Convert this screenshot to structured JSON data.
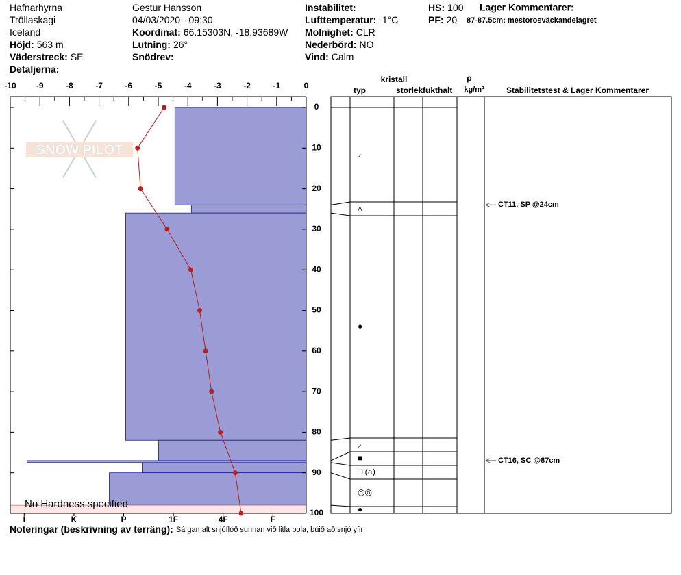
{
  "header": {
    "col1": [
      {
        "value": "Hafnarhyrna"
      },
      {
        "value": "Tröllaskagi"
      },
      {
        "value": "Iceland"
      },
      {
        "label": "Höjd:",
        "value": "563 m"
      },
      {
        "label": "Väderstreck:",
        "value": "SE"
      },
      {
        "label": "Detaljerna:"
      }
    ],
    "col2": [
      {
        "value": "Gestur Hansson"
      },
      {
        "value": "04/03/2020 - 09:30"
      },
      {
        "label": "Koordinat:",
        "value": "66.15303N, -18.93689W"
      },
      {
        "label": "Lutning:",
        "value": "26°"
      },
      {
        "label": "Snödrev:"
      }
    ],
    "col3": [
      {
        "label": "Instabilitet:"
      },
      {
        "label": "Lufttemperatur:",
        "value": "-1°C"
      },
      {
        "label": "Molnighet:",
        "value": "CLR"
      },
      {
        "label": "Nederbörd:",
        "value": "NO"
      },
      {
        "label": "Vind:",
        "value": "Calm"
      }
    ],
    "col4": [
      {
        "label": "HS:",
        "value": "100"
      },
      {
        "label": "PF:",
        "value": "20"
      }
    ],
    "layer_comments_title": "Lager Kommentarer:",
    "layer_comments": [
      "87-87.5cm: mestorosväckandelagret"
    ]
  },
  "logo": "SNOW PILOT",
  "chart_data": {
    "type": "profile",
    "xlim": [
      -10,
      0
    ],
    "xticks": [
      -10,
      -9,
      -8,
      -7,
      -6,
      -5,
      -4,
      -3,
      -2,
      -1,
      0
    ],
    "ylim": [
      0,
      100
    ],
    "yticks": [
      0,
      10,
      20,
      30,
      40,
      50,
      60,
      70,
      80,
      90,
      100
    ],
    "hardness": {
      "xlim": [
        6.28,
        0.33
      ],
      "xticks": [
        {
          "value": 6,
          "label": "I"
        },
        {
          "value": 5,
          "label": "K"
        },
        {
          "value": 4,
          "label": "P"
        },
        {
          "value": 3,
          "label": "1F"
        },
        {
          "value": 2,
          "label": "4F"
        },
        {
          "value": 1,
          "label": "F"
        }
      ],
      "color": "#9b9bd6",
      "edge_color": "#1a1aa0",
      "layers": [
        {
          "top": 0,
          "bottom": 24,
          "value": 2.97
        },
        {
          "top": 24,
          "bottom": 26,
          "value": 2.64
        },
        {
          "top": 26,
          "bottom": 82,
          "value": 3.96
        },
        {
          "top": 82,
          "bottom": 87,
          "value": 3.3
        },
        {
          "top": 87,
          "bottom": 87.5,
          "value": 5.94
        },
        {
          "top": 87.5,
          "bottom": 90,
          "value": 3.63
        },
        {
          "top": 90,
          "bottom": 98,
          "value": 4.29
        }
      ],
      "no_hardness": {
        "label": "No Hardness specified",
        "top": 98,
        "bottom": 100
      }
    },
    "temperature": {
      "color": "#b22222",
      "depths": [
        0,
        10,
        20,
        30,
        40,
        50,
        60,
        70,
        80,
        90,
        100
      ],
      "values": [
        -4.8,
        -5.7,
        -5.6,
        -4.7,
        -3.9,
        -3.6,
        -3.4,
        -3.2,
        -2.9,
        -2.4,
        -2.2
      ]
    }
  },
  "table": {
    "headers": {
      "crystal": "kristall",
      "type": "typ",
      "size": "storlek",
      "moisture": "fukthalt",
      "rho": "ρ",
      "rho_unit": "kg/m³",
      "comments": "Stabilitetstest & Lager Kommentarer"
    },
    "layers": [
      {
        "typ": "⸝"
      },
      {
        "typ": "⩚"
      },
      {
        "typ": "●"
      },
      {
        "typ": "⸝"
      },
      {
        "typ": "■"
      },
      {
        "typ": "□ (⌂)"
      },
      {
        "typ": "◎◎"
      },
      {
        "typ": "●"
      }
    ],
    "stability": [
      {
        "text": "CT11, SP @24cm",
        "depth": 24
      },
      {
        "text": "CT16, SC @87cm",
        "depth": 87
      }
    ]
  },
  "notes": {
    "label": "Noteringar (beskrivning av terräng):",
    "text": "Sá gamalt snjóflóð sunnan við litla bola, búið að snjó yfir"
  }
}
